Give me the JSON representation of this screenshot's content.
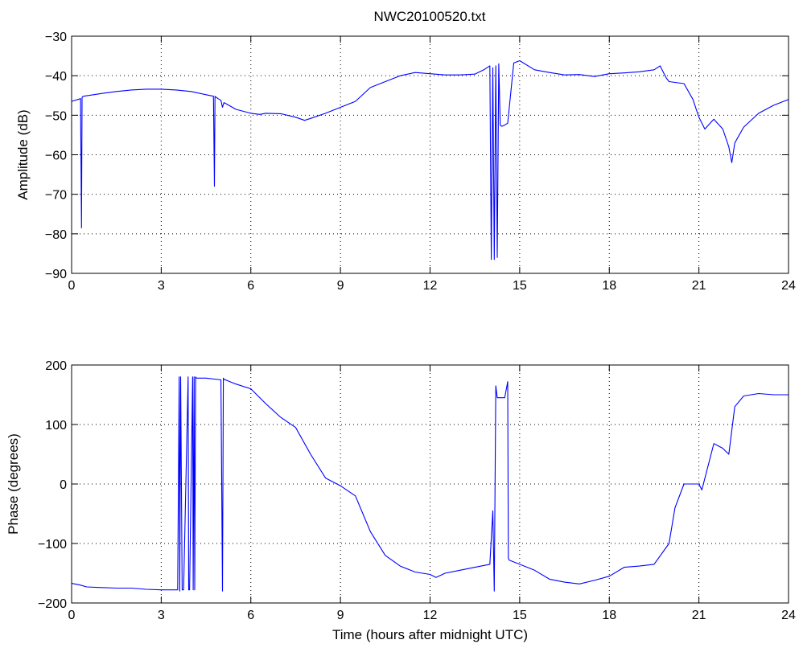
{
  "title": "NWC20100520.txt",
  "chart_data": [
    {
      "type": "line",
      "ylabel": "Amplitude (dB)",
      "xlabel": "",
      "xlim": [
        0,
        24
      ],
      "ylim": [
        -90,
        -30
      ],
      "xticks": [
        0,
        3,
        6,
        9,
        12,
        15,
        18,
        21,
        24
      ],
      "yticks": [
        -90,
        -80,
        -70,
        -60,
        -50,
        -40,
        -30
      ],
      "xtick_labels": [
        "0",
        "3",
        "6",
        "9",
        "12",
        "15",
        "18",
        "21",
        "24"
      ],
      "ytick_labels": [
        "−90",
        "−80",
        "−70",
        "−60",
        "−50",
        "−40",
        "−30"
      ],
      "grid": true,
      "series": [
        {
          "color": "#0000ff",
          "x": [
            0,
            0.3,
            0.33,
            0.35,
            0.37,
            0.4,
            1.0,
            1.5,
            2.0,
            2.5,
            3.0,
            3.5,
            4.0,
            4.5,
            4.75,
            4.78,
            4.8,
            4.82,
            4.85,
            4.9,
            5.0,
            5.05,
            5.1,
            5.2,
            5.5,
            6.0,
            6.3,
            6.5,
            7.0,
            7.5,
            7.8,
            8.0,
            8.5,
            9.0,
            9.5,
            10.0,
            10.5,
            11.0,
            11.5,
            12.0,
            12.5,
            13.0,
            13.5,
            13.8,
            14.0,
            14.05,
            14.1,
            14.15,
            14.2,
            14.25,
            14.3,
            14.35,
            14.4,
            14.5,
            14.6,
            14.8,
            15.0,
            15.5,
            16.0,
            16.5,
            17.0,
            17.5,
            18.0,
            18.5,
            19.0,
            19.5,
            19.7,
            19.9,
            20.0,
            20.5,
            20.8,
            21.0,
            21.2,
            21.5,
            21.8,
            22.0,
            22.1,
            22.2,
            22.5,
            23.0,
            23.5,
            24.0
          ],
          "y": [
            -46.5,
            -45.8,
            -78.5,
            -45.5,
            -45.3,
            -45.2,
            -44.5,
            -44,
            -43.6,
            -43.4,
            -43.4,
            -43.6,
            -44.0,
            -44.8,
            -45.2,
            -68,
            -45.2,
            -45.4,
            -45.5,
            -45.8,
            -46.2,
            -48,
            -46.8,
            -47.2,
            -48.5,
            -49.5,
            -49.8,
            -49.5,
            -49.6,
            -50.5,
            -51.3,
            -50.8,
            -49.5,
            -48,
            -46.5,
            -43,
            -41.5,
            -40,
            -39.2,
            -39.5,
            -39.8,
            -39.8,
            -39.6,
            -38.5,
            -37.5,
            -86.5,
            -38,
            -86.5,
            -37.5,
            -86,
            -37,
            -52.5,
            -52.8,
            -52.5,
            -52,
            -36.8,
            -36.2,
            -38.5,
            -39.2,
            -39.8,
            -39.7,
            -40.2,
            -39.5,
            -39.3,
            -39.0,
            -38.5,
            -37.5,
            -40.5,
            -41.5,
            -42,
            -46,
            -50.5,
            -53.5,
            -51,
            -53.5,
            -58,
            -62,
            -57,
            -53,
            -49.5,
            -47.5,
            -46
          ]
        }
      ]
    },
    {
      "type": "line",
      "ylabel": "Phase (degrees)",
      "xlabel": "Time (hours after midnight UTC)",
      "xlim": [
        0,
        24
      ],
      "ylim": [
        -200,
        200
      ],
      "xticks": [
        0,
        3,
        6,
        9,
        12,
        15,
        18,
        21,
        24
      ],
      "yticks": [
        -200,
        -100,
        0,
        100,
        200
      ],
      "xtick_labels": [
        "0",
        "3",
        "6",
        "9",
        "12",
        "15",
        "18",
        "21",
        "24"
      ],
      "ytick_labels": [
        "−200",
        "−100",
        "0",
        "100",
        "200"
      ],
      "grid": true,
      "series": [
        {
          "color": "#0000ff",
          "x": [
            0,
            0.3,
            0.5,
            1.0,
            1.5,
            2.0,
            2.5,
            3.0,
            3.5,
            3.55,
            3.6,
            3.62,
            3.65,
            3.7,
            3.75,
            3.9,
            3.92,
            3.95,
            4.05,
            4.07,
            4.1,
            4.12,
            4.15,
            4.18,
            4.5,
            5.0,
            5.05,
            5.08,
            5.1,
            5.2,
            5.5,
            6.0,
            6.5,
            7.0,
            7.5,
            8.0,
            8.5,
            9.0,
            9.5,
            10.0,
            10.5,
            11.0,
            11.5,
            12.0,
            12.2,
            12.5,
            13.0,
            13.5,
            14.0,
            14.1,
            14.15,
            14.2,
            14.25,
            14.3,
            14.5,
            14.6,
            14.62,
            14.65,
            15.0,
            15.5,
            16.0,
            16.5,
            17.0,
            17.5,
            18.0,
            18.5,
            19.0,
            19.5,
            20.0,
            20.2,
            20.5,
            20.8,
            21.0,
            21.1,
            21.5,
            21.8,
            22.0,
            22.2,
            22.5,
            23.0,
            23.5,
            24.0
          ],
          "y": [
            -167,
            -170,
            -173,
            -174,
            -175,
            -175,
            -177,
            -178,
            -178,
            -178,
            180,
            -180,
            180,
            -178,
            -178,
            180,
            -178,
            -178,
            180,
            -178,
            180,
            -178,
            180,
            178,
            178,
            175,
            -180,
            178,
            176,
            174,
            168,
            160,
            135,
            112,
            95,
            50,
            10,
            -3,
            -20,
            -80,
            -120,
            -138,
            -148,
            -152,
            -157,
            -150,
            -145,
            -140,
            -135,
            -45,
            -180,
            165,
            145,
            145,
            145,
            172,
            -125,
            -128,
            -135,
            -145,
            -160,
            -165,
            -168,
            -162,
            -155,
            -140,
            -138,
            -135,
            -100,
            -40,
            0,
            0,
            0,
            -10,
            68,
            60,
            50,
            130,
            148,
            152,
            150,
            150
          ]
        }
      ]
    }
  ]
}
